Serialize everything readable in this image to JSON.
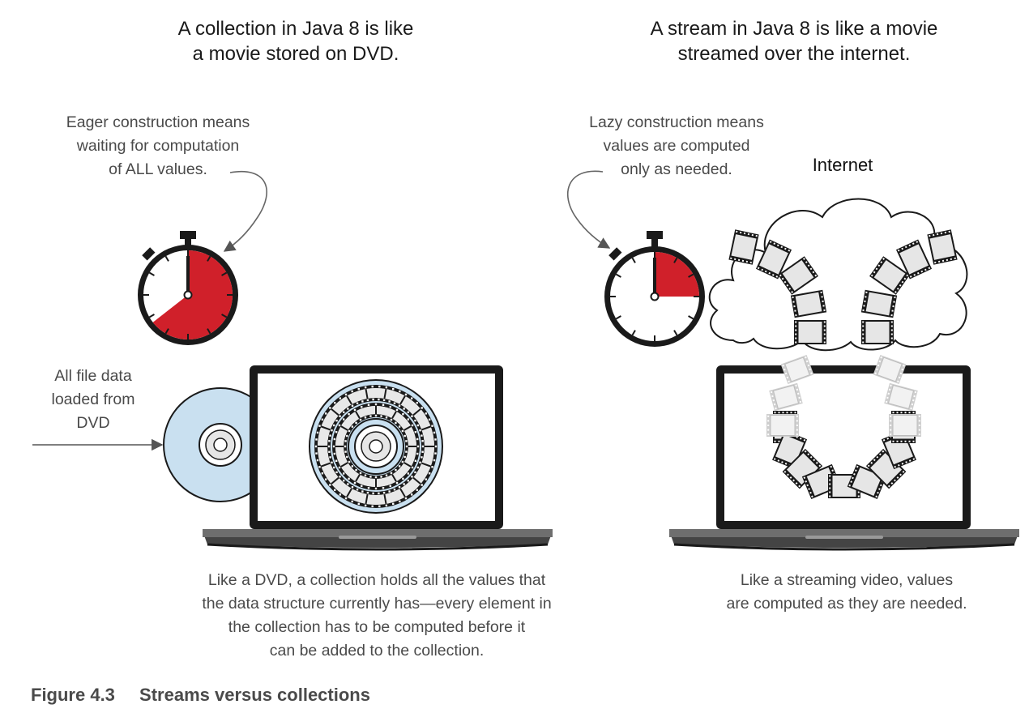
{
  "left": {
    "heading_line1": "A collection in Java 8 is like",
    "heading_line2": "a movie stored on DVD.",
    "annotation_line1": "Eager construction means",
    "annotation_line2": "waiting for computation",
    "annotation_line3": "of ALL values.",
    "side_note_line1": "All file data",
    "side_note_line2": "loaded from",
    "side_note_line3": "DVD",
    "description_line1": "Like a DVD, a collection holds all the values that",
    "description_line2": "the data structure currently has—every element in",
    "description_line3": "the collection has to be computed before it",
    "description_line4": "can be added to the collection.",
    "stopwatch_icon": "stopwatch-icon",
    "disc_icon": "dvd-disc-icon",
    "laptop_icon": "laptop-icon"
  },
  "right": {
    "heading_line1": "A stream in Java 8 is like a movie",
    "heading_line2": "streamed over the internet.",
    "annotation_line1": "Lazy construction means",
    "annotation_line2": "values are computed",
    "annotation_line3": "only as needed.",
    "cloud_label": "Internet",
    "description_line1": "Like a streaming video, values",
    "description_line2": "are computed as they are needed.",
    "stopwatch_icon": "stopwatch-icon",
    "cloud_icon": "cloud-icon",
    "laptop_icon": "laptop-icon"
  },
  "caption": {
    "number": "Figure 4.3",
    "title": "Streams versus collections"
  },
  "colors": {
    "accent_red": "#d0202a",
    "disc_blue": "#c9e0f0",
    "film_light": "#e8e8e8",
    "outline": "#1a1a1a",
    "caption_gray": "#4a4a4a"
  }
}
